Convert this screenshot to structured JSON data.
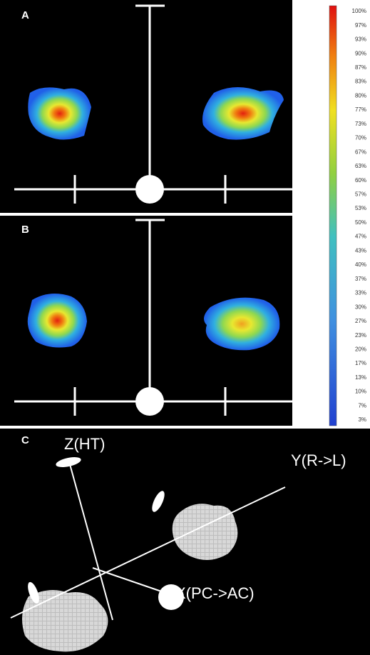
{
  "panels": {
    "a": "A",
    "b": "B",
    "c": "C"
  },
  "colorbar": {
    "labels": [
      "100%",
      "97%",
      "93%",
      "90%",
      "87%",
      "83%",
      "80%",
      "77%",
      "73%",
      "70%",
      "67%",
      "63%",
      "60%",
      "57%",
      "53%",
      "50%",
      "47%",
      "43%",
      "40%",
      "37%",
      "33%",
      "30%",
      "27%",
      "23%",
      "20%",
      "17%",
      "13%",
      "10%",
      "7%",
      "3%"
    ]
  },
  "axes_3d": {
    "z": "Z(HT)",
    "y": "Y(R->L)",
    "x": "X(PC->AC)"
  }
}
